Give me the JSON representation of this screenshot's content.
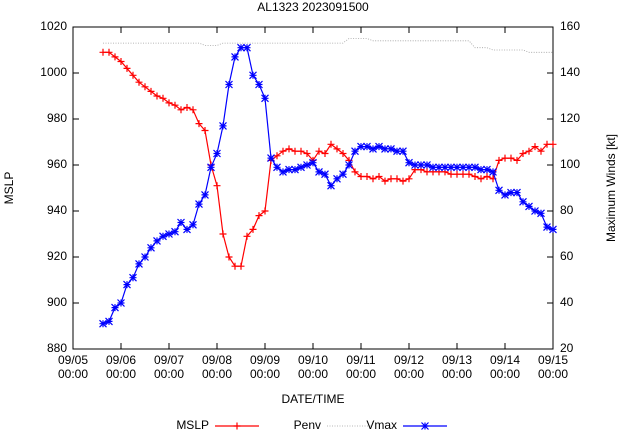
{
  "chart_data": {
    "type": "line",
    "title": "AL1323 2023091500",
    "xlabel": "DATE/TIME",
    "ylabel": "MSLP",
    "y2label": "Maximum Winds [kt]",
    "x": [
      "09/05 15:00",
      "09/05 18:00",
      "09/05 21:00",
      "09/06 00:00",
      "09/06 03:00",
      "09/06 06:00",
      "09/06 09:00",
      "09/06 12:00",
      "09/06 15:00",
      "09/06 18:00",
      "09/06 21:00",
      "09/07 00:00",
      "09/07 03:00",
      "09/07 06:00",
      "09/07 09:00",
      "09/07 12:00",
      "09/07 15:00",
      "09/07 18:00",
      "09/07 21:00",
      "09/08 00:00",
      "09/08 03:00",
      "09/08 06:00",
      "09/08 09:00",
      "09/08 12:00",
      "09/08 15:00",
      "09/08 18:00",
      "09/08 21:00",
      "09/09 00:00",
      "09/09 03:00",
      "09/09 06:00",
      "09/09 09:00",
      "09/09 12:00",
      "09/09 15:00",
      "09/09 18:00",
      "09/09 21:00",
      "09/10 00:00",
      "09/10 03:00",
      "09/10 06:00",
      "09/10 09:00",
      "09/10 12:00",
      "09/10 15:00",
      "09/10 18:00",
      "09/10 21:00",
      "09/11 00:00",
      "09/11 03:00",
      "09/11 06:00",
      "09/11 09:00",
      "09/11 12:00",
      "09/11 15:00",
      "09/11 18:00",
      "09/11 21:00",
      "09/12 00:00",
      "09/12 03:00",
      "09/12 06:00",
      "09/12 09:00",
      "09/12 12:00",
      "09/12 15:00",
      "09/12 18:00",
      "09/12 21:00",
      "09/13 00:00",
      "09/13 03:00",
      "09/13 06:00",
      "09/13 09:00",
      "09/13 12:00",
      "09/13 15:00",
      "09/13 18:00",
      "09/13 21:00",
      "09/14 00:00",
      "09/14 03:00",
      "09/14 06:00",
      "09/14 09:00",
      "09/14 12:00",
      "09/14 15:00",
      "09/14 18:00",
      "09/14 21:00",
      "09/15 00:00"
    ],
    "series": [
      {
        "name": "MSLP",
        "color": "#ff0000",
        "marker": "plus",
        "style": "solid",
        "values": [
          1009,
          1009,
          1007,
          1005,
          1002,
          999,
          996,
          994,
          992,
          990,
          989,
          987,
          986,
          984,
          985,
          984,
          978,
          975,
          960,
          951,
          930,
          920,
          916,
          916,
          929,
          932,
          938,
          940,
          962,
          964,
          966,
          967,
          966,
          966,
          965,
          962,
          966,
          965,
          969,
          967,
          965,
          962,
          957,
          955,
          955,
          954,
          955,
          953,
          954,
          954,
          953,
          954,
          958,
          958,
          957,
          957,
          957,
          957,
          956,
          956,
          956,
          956,
          955,
          954,
          955,
          954,
          962,
          963,
          963,
          962,
          965,
          966,
          968,
          966,
          969,
          969
        ]
      },
      {
        "name": "Penv",
        "color": "#a0a0a0",
        "style": "dotted",
        "values": [
          1013,
          1013,
          1013,
          1013,
          1013,
          1013,
          1013,
          1013,
          1013,
          1013,
          1013,
          1013,
          1013,
          1013,
          1013,
          1013,
          1013,
          1012,
          1012,
          1012,
          1013,
          1013,
          1013,
          1013,
          1013,
          1013,
          1013,
          1013,
          1013,
          1013,
          1013,
          1013,
          1013,
          1013,
          1013,
          1013,
          1013,
          1013,
          1013,
          1013,
          1013,
          1015,
          1015,
          1015,
          1015,
          1014,
          1014,
          1014,
          1014,
          1014,
          1014,
          1014,
          1014,
          1014,
          1014,
          1014,
          1014,
          1014,
          1014,
          1014,
          1014,
          1014,
          1011,
          1011,
          1011,
          1010,
          1010,
          1010,
          1010,
          1010,
          1010,
          1009,
          1009,
          1009,
          1009,
          1009
        ]
      },
      {
        "name": "Vmax",
        "color": "#0000ff",
        "marker": "star",
        "style": "solid",
        "axis": "y2",
        "values": [
          31,
          32,
          38,
          40,
          48,
          51,
          57,
          60,
          64,
          67,
          69,
          70,
          71,
          75,
          72,
          74,
          83,
          87,
          99,
          105,
          117,
          135,
          147,
          151,
          151,
          139,
          135,
          129,
          103,
          99,
          97,
          98,
          98,
          99,
          100,
          101,
          97,
          96,
          91,
          94,
          96,
          100,
          106,
          108,
          108,
          107,
          108,
          107,
          107,
          106,
          106,
          101,
          100,
          100,
          100,
          99,
          99,
          99,
          99,
          99,
          99,
          99,
          99,
          98,
          98,
          97,
          89,
          87,
          88,
          88,
          84,
          82,
          80,
          79,
          73,
          72
        ]
      }
    ],
    "xlim": [
      "09/05 00:00",
      "09/15 00:00"
    ],
    "xticks": [
      "09/05 00:00",
      "09/06 00:00",
      "09/07 00:00",
      "09/08 00:00",
      "09/09 00:00",
      "09/10 00:00",
      "09/11 00:00",
      "09/12 00:00",
      "09/13 00:00",
      "09/14 00:00",
      "09/15 00:00"
    ],
    "ylim": [
      880,
      1020
    ],
    "yticks": [
      880,
      900,
      920,
      940,
      960,
      980,
      1000,
      1020
    ],
    "y2lim": [
      20,
      160
    ],
    "y2ticks": [
      20,
      40,
      60,
      80,
      100,
      120,
      140,
      160
    ],
    "grid": false,
    "legend": "bottom"
  }
}
